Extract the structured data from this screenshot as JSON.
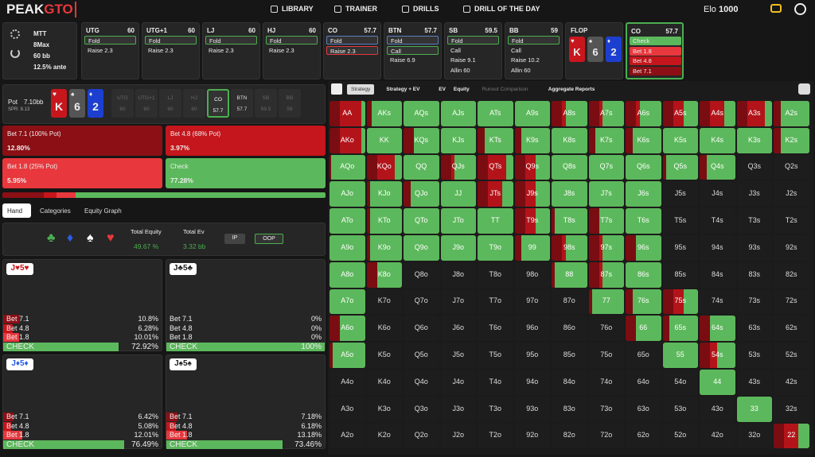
{
  "nav": {
    "logo_main": "PEAK",
    "logo_accent": "GTO",
    "links": [
      "LIBRARY",
      "TRAINER",
      "DRILLS",
      "DRILL OF THE DAY"
    ],
    "elo_label": "Elo",
    "elo_value": 1000
  },
  "game": {
    "format": "MTT",
    "players": "8Max",
    "stack": "60 bb",
    "ante": "12.5% ante"
  },
  "positions": [
    {
      "name": "UTG",
      "stack": 60,
      "actions": [
        "Fold",
        "Raise 2.3"
      ],
      "selected": 0
    },
    {
      "name": "UTG+1",
      "stack": 60,
      "actions": [
        "Fold",
        "Raise 2.3"
      ],
      "selected": 0
    },
    {
      "name": "LJ",
      "stack": 60,
      "actions": [
        "Fold",
        "Raise 2.3"
      ],
      "selected": 0
    },
    {
      "name": "HJ",
      "stack": 60,
      "actions": [
        "Fold",
        "Raise 2.3"
      ],
      "selected": 0
    },
    {
      "name": "CO",
      "stack": 57.7,
      "actions": [
        "Fold",
        "Raise 2.3"
      ],
      "selected": 1
    },
    {
      "name": "BTN",
      "stack": 57.7,
      "actions": [
        "Fold",
        "Call",
        "Raise 6.9"
      ],
      "selected": 1
    },
    {
      "name": "SB",
      "stack": 59.5,
      "actions": [
        "Fold",
        "Call",
        "Raise 9.1",
        "Allin 60"
      ],
      "selected": 0
    },
    {
      "name": "BB",
      "stack": 59,
      "actions": [
        "Fold",
        "Call",
        "Raise 10.2",
        "Allin 60"
      ],
      "selected": 0
    }
  ],
  "flop": {
    "label": "FLOP",
    "cards": [
      {
        "rank": "K",
        "suit": "♥",
        "color": "#c8161d"
      },
      {
        "rank": "6",
        "suit": "♠",
        "color": "#555555"
      },
      {
        "rank": "2",
        "suit": "♦",
        "color": "#1d3fd0"
      }
    ]
  },
  "current": {
    "name": "CO",
    "stack": 57.7,
    "actions": [
      {
        "label": "Check",
        "color": "#5cb85c"
      },
      {
        "label": "Bet 1.8",
        "color": "#e8383d"
      },
      {
        "label": "Bet 4.8",
        "color": "#c4161c"
      },
      {
        "label": "Bet 7.1",
        "color": "#8b0f14"
      }
    ]
  },
  "pot": {
    "label": "Pot",
    "value": "7.10bb",
    "spr": "SPR: 8.13"
  },
  "strategy": [
    {
      "label": "Bet 7.1 (100% Pot)",
      "value": 12.8,
      "value_label": "12.80%",
      "color": "#8b0f14"
    },
    {
      "label": "Bet 4.8 (68% Pot)",
      "value": 3.97,
      "value_label": "3.97%",
      "color": "#c4161c"
    },
    {
      "label": "Bet 1.8 (25% Pot)",
      "value": 5.95,
      "value_label": "5.95%",
      "color": "#e8383d"
    },
    {
      "label": "Check",
      "value": 77.28,
      "value_label": "77.28%",
      "color": "#5cb85c"
    }
  ],
  "tabs": [
    "Hand",
    "Categories",
    "Equity Graph"
  ],
  "equity": {
    "suits": [
      "♣",
      "♦",
      "♠",
      "♥"
    ],
    "equity_label": "Total Equity",
    "equity_value": "49.67 %",
    "ev_label": "Total Ev",
    "ev_value": "3.32 bb",
    "ip": "IP",
    "oop": "OOP"
  },
  "toolbar": [
    "Strategy",
    "Strategy + EV",
    "EV",
    "Equity",
    "Runout Comparison",
    "Aggregate Reports"
  ],
  "hands": [
    {
      "hand": "J♥5♥",
      "rows": [
        {
          "action": "Bet 7.1",
          "value": 10.8,
          "label": "10.8%"
        },
        {
          "action": "Bet 4.8",
          "value": 6.28,
          "label": "6.28%"
        },
        {
          "action": "Bet 1.8",
          "value": 10.01,
          "label": "10.01%"
        },
        {
          "action": "CHECK",
          "value": 72.92,
          "label": "72.92%"
        }
      ]
    },
    {
      "hand": "J♣5♣",
      "rows": [
        {
          "action": "Bet 7.1",
          "value": 0,
          "label": "0%"
        },
        {
          "action": "Bet 4.8",
          "value": 0,
          "label": "0%"
        },
        {
          "action": "Bet 1.8",
          "value": 0,
          "label": "0%"
        },
        {
          "action": "CHECK",
          "value": 100,
          "label": "100%"
        }
      ]
    },
    {
      "hand": "J♦5♦",
      "rows": [
        {
          "action": "Bet 7.1",
          "value": 6.42,
          "label": "6.42%"
        },
        {
          "action": "Bet 4.8",
          "value": 5.08,
          "label": "5.08%"
        },
        {
          "action": "Bet 1.8",
          "value": 12.01,
          "label": "12.01%"
        },
        {
          "action": "CHECK",
          "value": 76.49,
          "label": "76.49%"
        }
      ]
    },
    {
      "hand": "J♠5♠",
      "rows": [
        {
          "action": "Bet 7.1",
          "value": 7.18,
          "label": "7.18%"
        },
        {
          "action": "Bet 4.8",
          "value": 6.18,
          "label": "6.18%"
        },
        {
          "action": "Bet 1.8",
          "value": 13.18,
          "label": "13.18%"
        },
        {
          "action": "CHECK",
          "value": 73.46,
          "label": "73.46%"
        }
      ]
    }
  ],
  "matrix": {
    "labels": [
      [
        "AA",
        "AKs",
        "AQs",
        "AJs",
        "ATs",
        "A9s",
        "A8s",
        "A7s",
        "A6s",
        "A5s",
        "A4s",
        "A3s",
        "A2s"
      ],
      [
        "AKo",
        "KK",
        "KQs",
        "KJs",
        "KTs",
        "K9s",
        "K8s",
        "K7s",
        "K6s",
        "K5s",
        "K4s",
        "K3s",
        "K2s"
      ],
      [
        "AQo",
        "KQo",
        "QQ",
        "QJs",
        "QTs",
        "Q9s",
        "Q8s",
        "Q7s",
        "Q6s",
        "Q5s",
        "Q4s",
        "Q3s",
        "Q2s"
      ],
      [
        "AJo",
        "KJo",
        "QJo",
        "JJ",
        "JTs",
        "J9s",
        "J8s",
        "J7s",
        "J6s",
        "J5s",
        "J4s",
        "J3s",
        "J2s"
      ],
      [
        "ATo",
        "KTo",
        "QTo",
        "JTo",
        "TT",
        "T9s",
        "T8s",
        "T7s",
        "T6s",
        "T5s",
        "T4s",
        "T3s",
        "T2s"
      ],
      [
        "A9o",
        "K9o",
        "Q9o",
        "J9o",
        "T9o",
        "99",
        "98s",
        "97s",
        "96s",
        "95s",
        "94s",
        "93s",
        "92s"
      ],
      [
        "A8o",
        "K8o",
        "Q8o",
        "J8o",
        "T8o",
        "98o",
        "88",
        "87s",
        "86s",
        "85s",
        "84s",
        "83s",
        "82s"
      ],
      [
        "A7o",
        "K7o",
        "Q7o",
        "J7o",
        "T7o",
        "97o",
        "87o",
        "77",
        "76s",
        "75s",
        "74s",
        "73s",
        "72s"
      ],
      [
        "A6o",
        "K6o",
        "Q6o",
        "J6o",
        "T6o",
        "96o",
        "86o",
        "76o",
        "66",
        "65s",
        "64s",
        "63s",
        "62s"
      ],
      [
        "A5o",
        "K5o",
        "Q5o",
        "J5o",
        "T5o",
        "95o",
        "85o",
        "75o",
        "65o",
        "55",
        "54s",
        "53s",
        "52s"
      ],
      [
        "A4o",
        "K4o",
        "Q4o",
        "J4o",
        "T4o",
        "94o",
        "84o",
        "74o",
        "64o",
        "54o",
        "44",
        "43s",
        "42s"
      ],
      [
        "A3o",
        "K3o",
        "Q3o",
        "J3o",
        "T3o",
        "93o",
        "83o",
        "73o",
        "63o",
        "53o",
        "43o",
        "33",
        "32s"
      ],
      [
        "A2o",
        "K2o",
        "Q2o",
        "J2o",
        "T2o",
        "92o",
        "82o",
        "72o",
        "62o",
        "52o",
        "42o",
        "32o",
        "22"
      ]
    ],
    "check": [
      [
        10,
        85,
        100,
        100,
        100,
        100,
        60,
        60,
        60,
        40,
        30,
        20,
        80
      ],
      [
        10,
        100,
        70,
        100,
        80,
        80,
        100,
        80,
        80,
        100,
        100,
        100,
        80
      ],
      [
        95,
        20,
        100,
        60,
        20,
        40,
        100,
        100,
        100,
        90,
        80,
        null,
        null
      ],
      [
        100,
        90,
        80,
        100,
        30,
        40,
        100,
        100,
        100,
        null,
        null,
        null,
        null
      ],
      [
        100,
        90,
        100,
        100,
        100,
        40,
        90,
        70,
        100,
        null,
        null,
        null,
        null
      ],
      [
        100,
        90,
        100,
        100,
        100,
        80,
        60,
        60,
        70,
        null,
        null,
        null,
        null
      ],
      [
        100,
        70,
        null,
        null,
        null,
        null,
        90,
        60,
        100,
        null,
        null,
        null,
        null
      ],
      [
        100,
        null,
        null,
        null,
        null,
        null,
        null,
        90,
        80,
        40,
        null,
        null,
        null
      ],
      [
        70,
        null,
        null,
        null,
        null,
        null,
        null,
        null,
        70,
        80,
        70,
        null,
        null
      ],
      [
        90,
        null,
        null,
        null,
        null,
        null,
        null,
        null,
        null,
        100,
        50,
        null,
        null
      ],
      [
        null,
        null,
        null,
        null,
        null,
        null,
        null,
        null,
        null,
        null,
        100,
        null,
        null
      ],
      [
        null,
        null,
        null,
        null,
        null,
        null,
        null,
        null,
        null,
        null,
        null,
        100,
        null
      ],
      [
        null,
        null,
        null,
        null,
        null,
        null,
        null,
        null,
        null,
        null,
        null,
        null,
        30
      ]
    ],
    "in_color": "#5cb85c",
    "out_color": "#1d1d1d",
    "bet_color": "#b3141a"
  }
}
